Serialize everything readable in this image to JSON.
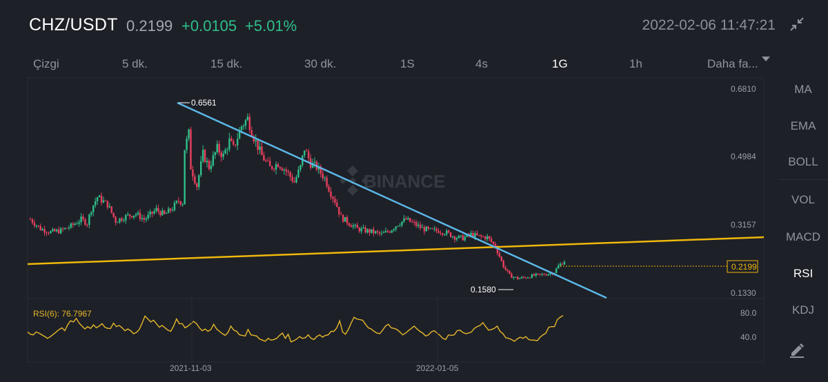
{
  "header": {
    "pair": "CHZ/USDT",
    "price": "0.2199",
    "change": "+0.0105",
    "change_pct": "+5.01%",
    "datetime": "2022-02-06 11:47:21",
    "collapse_icon": "collapse-arrows-icon"
  },
  "tabs": [
    {
      "label": "Çizgi",
      "active": false
    },
    {
      "label": "5 dk.",
      "active": false
    },
    {
      "label": "15 dk.",
      "active": false
    },
    {
      "label": "30 dk.",
      "active": false
    },
    {
      "label": "1S",
      "active": false
    },
    {
      "label": "4s",
      "active": false
    },
    {
      "label": "1G",
      "active": true
    },
    {
      "label": "1h",
      "active": false
    },
    {
      "label": "Daha fa...",
      "active": false
    }
  ],
  "indicators": [
    "MA",
    "EMA",
    "BOLL",
    "VOL",
    "MACD",
    "RSI",
    "KDJ"
  ],
  "active_indicator": "RSI",
  "edit_icon": "pencil-icon",
  "watermark": "BINANCE",
  "colors": {
    "background": "#1e2027",
    "up": "#2fc08a",
    "down": "#ea3f5e",
    "trendline_blue": "#5bb8e8",
    "support_yellow": "#f0b90b",
    "rsi_line": "#e6b82a",
    "price_tag": "#f0b90b"
  },
  "chart_data": {
    "type": "candlestick",
    "price_axis": {
      "ticks": [
        "0.6810",
        "0.4984",
        "0.3157",
        "0.1330"
      ],
      "range": [
        0.133,
        0.681
      ]
    },
    "current_price_label": "0.2199",
    "high_label": "0.6561",
    "low_label": "0.1580",
    "x_ticks": [
      "2021-11-03",
      "2022-01-05"
    ],
    "rsi": {
      "label": "RSI(6): 76.7967",
      "ticks": [
        "80.0",
        "40.0"
      ],
      "values": [
        49,
        45,
        44,
        49,
        47,
        44,
        41,
        38,
        41,
        45,
        49,
        53,
        56,
        51,
        61,
        68,
        66,
        72,
        64,
        59,
        54,
        58,
        55,
        61,
        56,
        59,
        63,
        57,
        55,
        55,
        64,
        58,
        60,
        56,
        51,
        54,
        51,
        46,
        48,
        53,
        64,
        76,
        71,
        66,
        69,
        63,
        57,
        60,
        56,
        52,
        50,
        59,
        71,
        63,
        63,
        56,
        59,
        63,
        67,
        63,
        56,
        51,
        54,
        50,
        53,
        62,
        54,
        50,
        46,
        43,
        48,
        59,
        52,
        50,
        44,
        43,
        42,
        53,
        44,
        43,
        42,
        37,
        35,
        33,
        38,
        35,
        36,
        38,
        43,
        47,
        38,
        45,
        32,
        34,
        37,
        41,
        38,
        39,
        44,
        38,
        36,
        41,
        44,
        40,
        43,
        44,
        50,
        50,
        56,
        68,
        49,
        45,
        53,
        64,
        74,
        71,
        70,
        69,
        62,
        56,
        54,
        50,
        47,
        46,
        52,
        59,
        62,
        56,
        55,
        53,
        49,
        44,
        47,
        51,
        55,
        59,
        54,
        50,
        47,
        42,
        44,
        49,
        51,
        47,
        43,
        38,
        36,
        44,
        43,
        44,
        51,
        52,
        48,
        46,
        47,
        49,
        55,
        58,
        60,
        65,
        58,
        52,
        53,
        55,
        59,
        50,
        46,
        39,
        38,
        36,
        33,
        37,
        40,
        38,
        41,
        36,
        35,
        35,
        34,
        40,
        44,
        47,
        57,
        58,
        58,
        70,
        74,
        77
      ]
    }
  }
}
